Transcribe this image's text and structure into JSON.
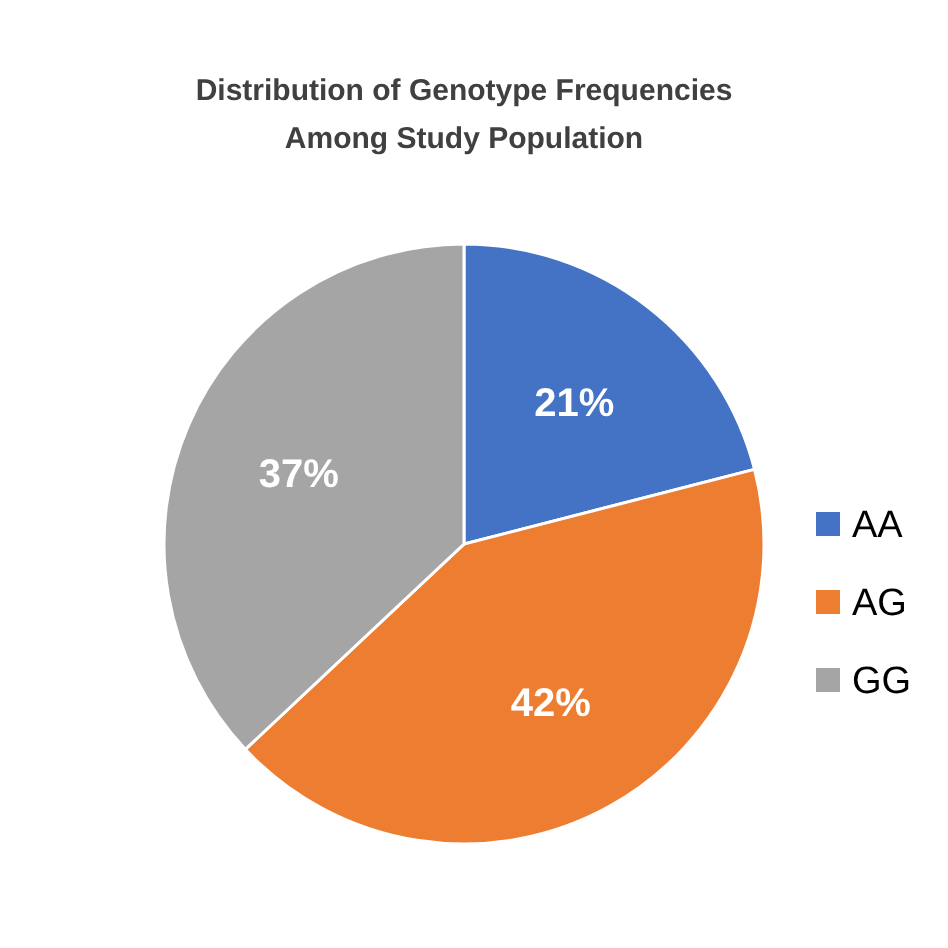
{
  "chart_data": {
    "type": "pie",
    "title": "Distribution of Genotype Frequencies\nAmong Study Population",
    "categories": [
      "AA",
      "AG",
      "GG"
    ],
    "values": [
      21,
      42,
      37
    ],
    "colors": [
      "#4472c4",
      "#ed7d31",
      "#a5a5a5"
    ],
    "value_labels": [
      "21%",
      "42%",
      "37%"
    ],
    "legend": "right"
  }
}
